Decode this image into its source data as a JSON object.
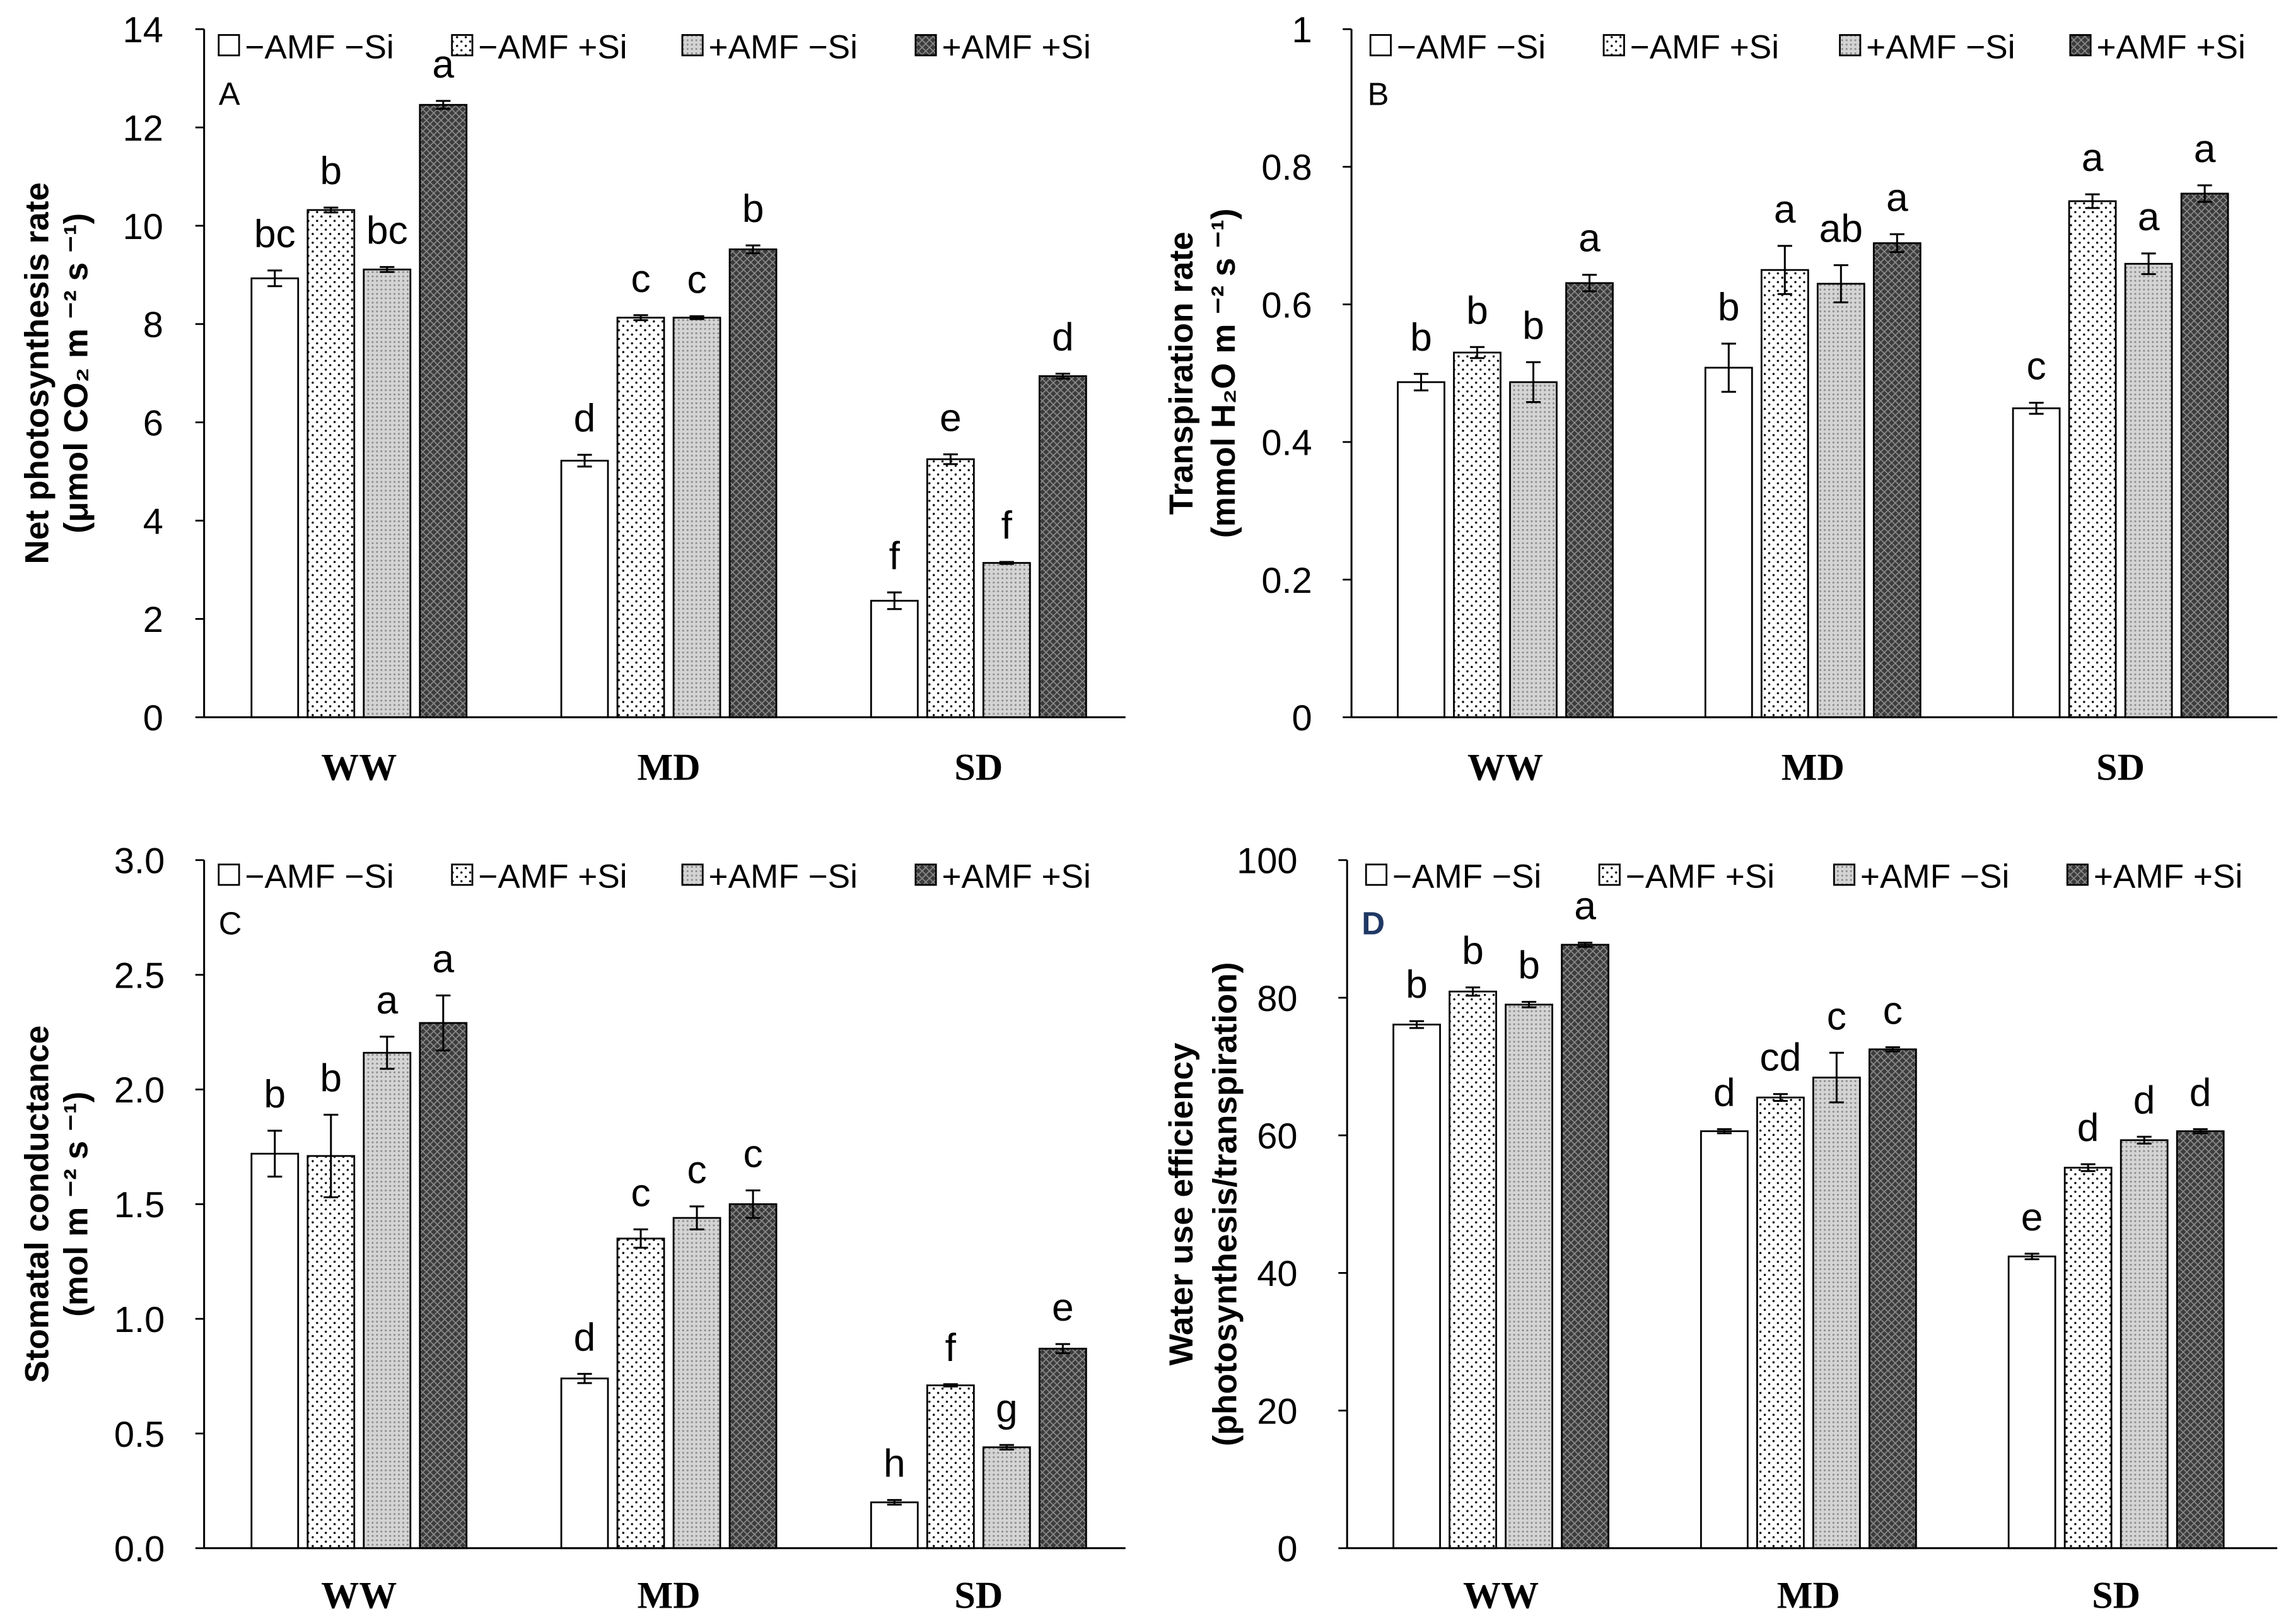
{
  "chart_data": [
    {
      "type": "bar",
      "panel_label": "A",
      "ylabel": [
        "Net photosynthesis rate",
        "(μmol CO₂ m ⁻² s ⁻¹)"
      ],
      "categories": [
        "WW",
        "MD",
        "SD"
      ],
      "ylim": [
        0,
        14
      ],
      "yticks": [
        "0",
        "2",
        "4",
        "6",
        "8",
        "10",
        "12",
        "14"
      ],
      "series": [
        {
          "name": "−AMF −Si",
          "values": [
            8.93,
            5.22,
            2.37
          ],
          "errors": [
            0.16,
            0.12,
            0.17
          ],
          "letters": [
            "bc",
            "d",
            "f"
          ]
        },
        {
          "name": "−AMF +Si",
          "values": [
            10.32,
            8.13,
            5.25
          ],
          "errors": [
            0.05,
            0.05,
            0.1
          ],
          "letters": [
            "b",
            "c",
            "e"
          ]
        },
        {
          "name": "+AMF −Si",
          "values": [
            9.11,
            8.13,
            3.14
          ],
          "errors": [
            0.05,
            0.03,
            0.02
          ],
          "letters": [
            "bc",
            "c",
            "f"
          ]
        },
        {
          "name": "+AMF +Si",
          "values": [
            12.46,
            9.52,
            6.94
          ],
          "errors": [
            0.08,
            0.08,
            0.05
          ],
          "letters": [
            "a",
            "b",
            "d"
          ]
        }
      ]
    },
    {
      "type": "bar",
      "panel_label": "B",
      "ylabel": [
        "Transpiration rate",
        "(mmol H₂O m ⁻² s ⁻¹)"
      ],
      "categories": [
        "WW",
        "MD",
        "SD"
      ],
      "ylim": [
        0,
        1
      ],
      "yticks": [
        "0",
        "0.2",
        "0.4",
        "0.6",
        "0.8",
        "1"
      ],
      "series": [
        {
          "name": "−AMF −Si",
          "values": [
            0.487,
            0.508,
            0.449
          ],
          "errors": [
            0.012,
            0.035,
            0.008
          ],
          "letters": [
            "b",
            "b",
            "c"
          ]
        },
        {
          "name": "−AMF +Si",
          "values": [
            0.53,
            0.65,
            0.75
          ],
          "errors": [
            0.008,
            0.035,
            0.01
          ],
          "letters": [
            "b",
            "a",
            "a"
          ]
        },
        {
          "name": "+AMF −Si",
          "values": [
            0.487,
            0.63,
            0.659
          ],
          "errors": [
            0.029,
            0.027,
            0.015
          ],
          "letters": [
            "b",
            "ab",
            "a"
          ]
        },
        {
          "name": "+AMF +Si",
          "values": [
            0.631,
            0.689,
            0.761
          ],
          "errors": [
            0.012,
            0.013,
            0.012
          ],
          "letters": [
            "a",
            "a",
            "a"
          ]
        }
      ]
    },
    {
      "type": "bar",
      "panel_label": "C",
      "ylabel": [
        "Stomatal conductance",
        "(mol m ⁻² s ⁻¹)"
      ],
      "categories": [
        "WW",
        "MD",
        "SD"
      ],
      "ylim": [
        0,
        3
      ],
      "yticks": [
        "0.0",
        "0.5",
        "1.0",
        "1.5",
        "2.0",
        "2.5",
        "3.0"
      ],
      "series": [
        {
          "name": "−AMF −Si",
          "values": [
            1.72,
            0.74,
            0.2
          ],
          "errors": [
            0.1,
            0.02,
            0.01
          ],
          "letters": [
            "b",
            "d",
            "h"
          ]
        },
        {
          "name": "−AMF +Si",
          "values": [
            1.71,
            1.35,
            0.71
          ],
          "errors": [
            0.18,
            0.04,
            0.005
          ],
          "letters": [
            "b",
            "c",
            "f"
          ]
        },
        {
          "name": "+AMF −Si",
          "values": [
            2.16,
            1.44,
            0.44
          ],
          "errors": [
            0.07,
            0.05,
            0.01
          ],
          "letters": [
            "a",
            "c",
            "g"
          ]
        },
        {
          "name": "+AMF +Si",
          "values": [
            2.29,
            1.5,
            0.87
          ],
          "errors": [
            0.12,
            0.06,
            0.02
          ],
          "letters": [
            "a",
            "c",
            "e"
          ]
        }
      ]
    },
    {
      "type": "bar",
      "panel_label": "D",
      "ylabel": [
        "Water use efficiency",
        "(photosynthesis/transpiration)"
      ],
      "categories": [
        "WW",
        "MD",
        "SD"
      ],
      "ylim": [
        0,
        100
      ],
      "yticks": [
        "0",
        "20",
        "40",
        "60",
        "80",
        "100"
      ],
      "series": [
        {
          "name": "−AMF −Si",
          "values": [
            76.1,
            60.6,
            42.4
          ],
          "errors": [
            0.5,
            0.3,
            0.4
          ],
          "letters": [
            "b",
            "d",
            "e"
          ]
        },
        {
          "name": "−AMF +Si",
          "values": [
            80.9,
            65.5,
            55.3
          ],
          "errors": [
            0.6,
            0.5,
            0.5
          ],
          "letters": [
            "b",
            "cd",
            "d"
          ]
        },
        {
          "name": "+AMF −Si",
          "values": [
            79.0,
            68.4,
            59.3
          ],
          "errors": [
            0.4,
            3.6,
            0.5
          ],
          "letters": [
            "b",
            "c",
            "d"
          ]
        },
        {
          "name": "+AMF +Si",
          "values": [
            87.7,
            72.5,
            60.6
          ],
          "errors": [
            0.3,
            0.3,
            0.3
          ],
          "letters": [
            "a",
            "c",
            "d"
          ]
        }
      ]
    }
  ]
}
